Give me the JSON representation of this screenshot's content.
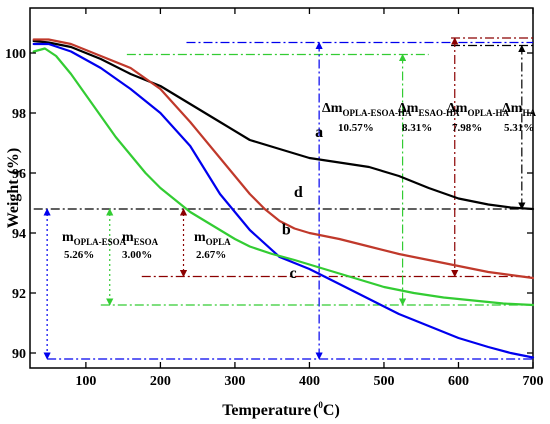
{
  "chart_data": {
    "type": "line",
    "xlabel_main": "Temperature",
    "xlabel_unit_open": "(",
    "xlabel_unit_sup": "0",
    "xlabel_unit_close": "C)",
    "ylabel_main": "Weight",
    "ylabel_unit": "(%)",
    "xlim": [
      25,
      700
    ],
    "ylim": [
      89.5,
      101.5
    ],
    "xticks": [
      "100",
      "200",
      "300",
      "400",
      "500",
      "600",
      "700"
    ],
    "yticks": [
      "90",
      "92",
      "94",
      "96",
      "98",
      "100"
    ],
    "grid": false,
    "series": [
      {
        "name": "a",
        "color": "#000000",
        "x": [
          30,
          50,
          80,
          120,
          160,
          200,
          240,
          280,
          320,
          360,
          400,
          440,
          480,
          520,
          560,
          600,
          640,
          670,
          700
        ],
        "y": [
          100.4,
          100.35,
          100.2,
          99.8,
          99.3,
          98.9,
          98.3,
          97.7,
          97.1,
          96.8,
          96.5,
          96.35,
          96.2,
          95.9,
          95.5,
          95.15,
          94.95,
          94.85,
          94.8
        ]
      },
      {
        "name": "b",
        "color": "#c0392b",
        "x": [
          30,
          50,
          80,
          120,
          160,
          200,
          240,
          280,
          300,
          320,
          340,
          360,
          380,
          400,
          440,
          480,
          520,
          560,
          600,
          640,
          670,
          700
        ],
        "y": [
          100.45,
          100.45,
          100.3,
          99.9,
          99.5,
          98.8,
          97.7,
          96.5,
          95.9,
          95.3,
          94.8,
          94.4,
          94.15,
          94.0,
          93.8,
          93.55,
          93.3,
          93.1,
          92.9,
          92.7,
          92.6,
          92.5
        ]
      },
      {
        "name": "c",
        "color": "#0000ee",
        "x": [
          30,
          50,
          80,
          120,
          160,
          200,
          240,
          280,
          320,
          360,
          400,
          440,
          480,
          520,
          560,
          600,
          640,
          670,
          700
        ],
        "y": [
          100.3,
          100.3,
          100.05,
          99.5,
          98.8,
          98.0,
          96.9,
          95.3,
          94.1,
          93.2,
          92.8,
          92.3,
          91.8,
          91.3,
          90.9,
          90.5,
          90.2,
          90.0,
          89.85
        ]
      },
      {
        "name": "d",
        "color": "#33cc33",
        "x": [
          30,
          45,
          60,
          80,
          100,
          120,
          140,
          160,
          180,
          200,
          220,
          240,
          260,
          280,
          300,
          320,
          350,
          380,
          420,
          460,
          500,
          540,
          580,
          620,
          660,
          700
        ],
        "y": [
          100.05,
          100.15,
          99.9,
          99.3,
          98.6,
          97.9,
          97.2,
          96.6,
          96.0,
          95.5,
          95.1,
          94.7,
          94.4,
          94.1,
          93.8,
          93.55,
          93.3,
          93.1,
          92.8,
          92.5,
          92.2,
          92.0,
          91.85,
          91.75,
          91.65,
          91.6
        ]
      }
    ],
    "curve_labels": [
      {
        "text": "a",
        "x": 413,
        "y": 97.2
      },
      {
        "text": "d",
        "x": 385,
        "y": 95.2
      },
      {
        "text": "b",
        "x": 369,
        "y": 93.95
      },
      {
        "text": "c",
        "x": 378,
        "y": 92.5
      }
    ],
    "reference_lines": [
      {
        "orientation": "horizontal",
        "y": 100.5,
        "x_from": 590,
        "x_to": 700,
        "color": "#8b0000",
        "style": "dash-dot"
      },
      {
        "orientation": "horizontal",
        "y": 100.35,
        "x_from": 235,
        "x_to": 700,
        "color": "#0000ee",
        "style": "dash-dot"
      },
      {
        "orientation": "horizontal",
        "y": 100.25,
        "x_from": 590,
        "x_to": 700,
        "color": "#000000",
        "style": "dash-dot"
      },
      {
        "orientation": "horizontal",
        "y": 99.95,
        "x_from": 155,
        "x_to": 560,
        "color": "#33cc33",
        "style": "dash-dot"
      },
      {
        "orientation": "horizontal",
        "y": 94.8,
        "x_from": 30,
        "x_to": 700,
        "color": "#000000",
        "style": "dash-dot"
      },
      {
        "orientation": "horizontal",
        "y": 92.55,
        "x_from": 175,
        "x_to": 700,
        "color": "#8b0000",
        "style": "dash-dot"
      },
      {
        "orientation": "horizontal",
        "y": 91.6,
        "x_from": 120,
        "x_to": 700,
        "color": "#33cc33",
        "style": "dash-dot"
      },
      {
        "orientation": "horizontal",
        "y": 89.8,
        "x_from": 48,
        "x_to": 700,
        "color": "#0000ee",
        "style": "dash-dot"
      }
    ],
    "arrows": [
      {
        "x": 48,
        "y_from": 94.8,
        "y_to": 89.8,
        "color": "#0000ee",
        "style": "dotted",
        "heads": [
          "start",
          "end"
        ]
      },
      {
        "x": 132,
        "y_from": 94.8,
        "y_to": 91.6,
        "color": "#33cc33",
        "style": "dotted",
        "heads": [
          "start",
          "end"
        ]
      },
      {
        "x": 231,
        "y_from": 94.8,
        "y_to": 92.55,
        "color": "#8b0000",
        "style": "dotted",
        "heads": [
          "start",
          "end"
        ]
      },
      {
        "x": 413,
        "y_from": 100.35,
        "y_to": 89.8,
        "color": "#0000ee",
        "style": "dash-dot",
        "heads": [
          "start",
          "end"
        ]
      },
      {
        "x": 525,
        "y_from": 99.95,
        "y_to": 91.6,
        "color": "#33cc33",
        "style": "dash-dot",
        "heads": [
          "start",
          "end"
        ]
      },
      {
        "x": 595,
        "y_from": 100.5,
        "y_to": 92.55,
        "color": "#8b0000",
        "style": "dash-dot",
        "heads": [
          "start",
          "end"
        ]
      },
      {
        "x": 685,
        "y_from": 100.25,
        "y_to": 94.8,
        "color": "#000000",
        "style": "dash-dot",
        "heads": [
          "start",
          "end"
        ]
      }
    ],
    "annotations": {
      "m_opla_esoa": {
        "main": "m",
        "sub": "OPLA-ESOA",
        "value": "5.26%"
      },
      "m_esoa": {
        "main": "m",
        "sub": "ESOA",
        "value": "3.00%"
      },
      "m_opla": {
        "main": "m",
        "sub": "OPLA",
        "value": "2.67%"
      },
      "dm_opla_esoa_ha": {
        "main": "Δm",
        "sub": "OPLA-ESOA-HA",
        "value": "10.57%"
      },
      "dm_esao_ha": {
        "main": "Δm",
        "sub": "ESAO-HA",
        "value": "8.31%"
      },
      "dm_opla_ha": {
        "main": "Δm",
        "sub": "OPLA-HA",
        "value": "7.98%"
      },
      "dm_ha": {
        "main": "Δm",
        "sub": "HA",
        "value": "5.31%"
      }
    }
  }
}
